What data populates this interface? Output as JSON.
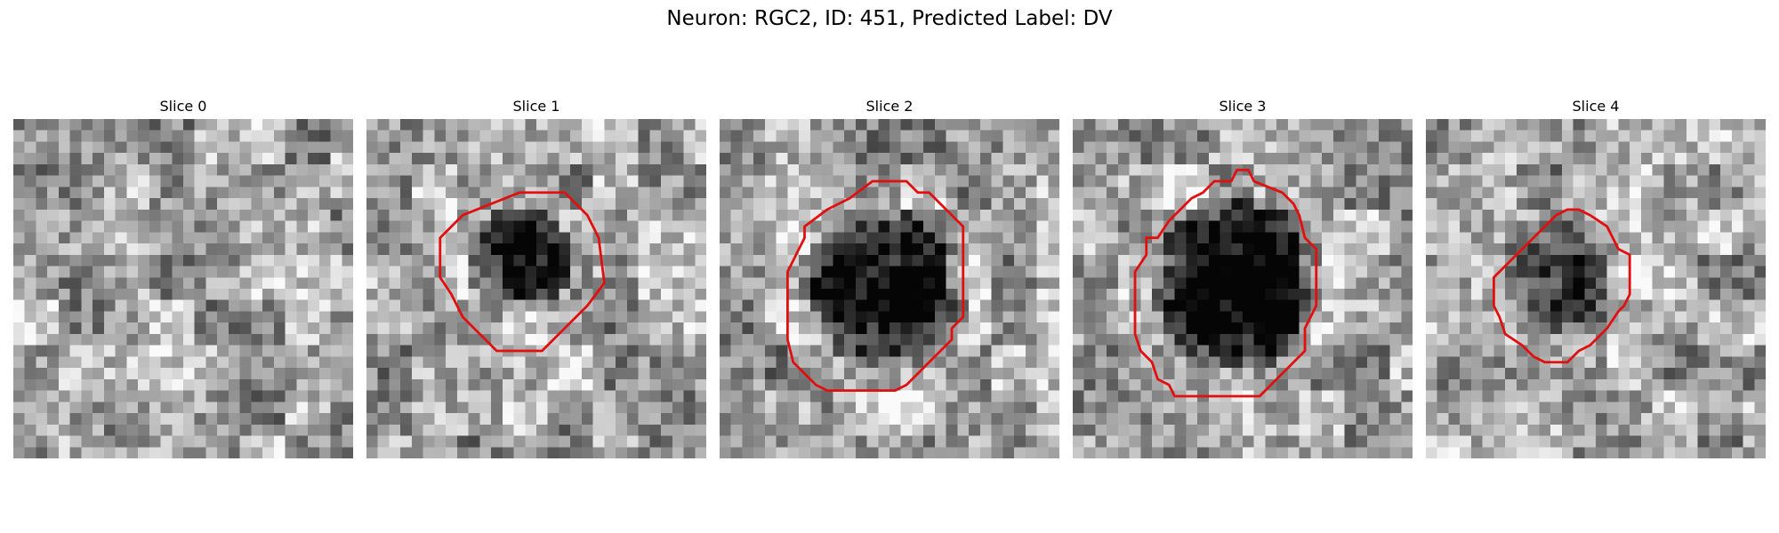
{
  "figure": {
    "title": "Neuron: RGC2, ID: 451, Predicted Label: DV",
    "contour_color": "#e01010",
    "colormap": "gray",
    "slices": [
      {
        "label": "Slice 0",
        "seed": 11,
        "dark_blob": null,
        "contour": []
      },
      {
        "label": "Slice 1",
        "seed": 23,
        "dark_blob": {
          "cx": 13.5,
          "cy": 12.5,
          "r": 5.0,
          "strength": 0.55
        },
        "contour": [
          [
            13.5,
            6.5
          ],
          [
            17.5,
            6.5
          ],
          [
            19.5,
            8.5
          ],
          [
            20.5,
            10.5
          ],
          [
            21.0,
            14.5
          ],
          [
            19.5,
            16.5
          ],
          [
            17.5,
            18.5
          ],
          [
            16.5,
            19.5
          ],
          [
            15.5,
            20.5
          ],
          [
            11.5,
            20.5
          ],
          [
            8.5,
            17.5
          ],
          [
            7.5,
            15.5
          ],
          [
            6.5,
            14.0
          ],
          [
            6.5,
            10.5
          ],
          [
            8.5,
            8.5
          ]
        ]
      },
      {
        "label": "Slice 2",
        "seed": 37,
        "dark_blob": {
          "cx": 14.5,
          "cy": 15.0,
          "r": 7.5,
          "strength": 0.7
        },
        "contour": [
          [
            13.5,
            5.5
          ],
          [
            16.5,
            5.5
          ],
          [
            17.5,
            6.5
          ],
          [
            18.5,
            6.5
          ],
          [
            21.5,
            9.5
          ],
          [
            21.5,
            13.5
          ],
          [
            21.5,
            17.5
          ],
          [
            20.5,
            18.5
          ],
          [
            20.5,
            19.5
          ],
          [
            18.5,
            21.5
          ],
          [
            17.5,
            22.5
          ],
          [
            16.5,
            23.5
          ],
          [
            15.5,
            24.0
          ],
          [
            12.5,
            24.0
          ],
          [
            9.5,
            24.0
          ],
          [
            8.5,
            23.5
          ],
          [
            6.5,
            21.5
          ],
          [
            6.0,
            19.5
          ],
          [
            6.0,
            14.5
          ],
          [
            6.0,
            13.5
          ],
          [
            7.0,
            11.5
          ],
          [
            7.5,
            10.5
          ],
          [
            7.5,
            9.5
          ],
          [
            9.5,
            8.0
          ],
          [
            11.5,
            7.0
          ]
        ]
      },
      {
        "label": "Slice 3",
        "seed": 53,
        "dark_blob": {
          "cx": 14.5,
          "cy": 14.5,
          "r": 8.0,
          "strength": 0.72
        },
        "contour": [
          [
            12.5,
            5.5
          ],
          [
            14.0,
            5.5
          ],
          [
            14.5,
            4.5
          ],
          [
            15.5,
            4.5
          ],
          [
            16.0,
            5.5
          ],
          [
            18.5,
            6.5
          ],
          [
            19.5,
            7.5
          ],
          [
            20.0,
            8.5
          ],
          [
            20.5,
            10.5
          ],
          [
            21.5,
            11.5
          ],
          [
            21.5,
            13.5
          ],
          [
            21.5,
            16.5
          ],
          [
            20.5,
            18.5
          ],
          [
            20.5,
            20.5
          ],
          [
            17.5,
            23.5
          ],
          [
            16.5,
            24.5
          ],
          [
            9.0,
            24.5
          ],
          [
            8.5,
            23.5
          ],
          [
            7.5,
            23.0
          ],
          [
            7.0,
            21.5
          ],
          [
            6.0,
            20.5
          ],
          [
            5.5,
            19.0
          ],
          [
            5.5,
            15.5
          ],
          [
            5.5,
            13.5
          ],
          [
            6.5,
            12.0
          ],
          [
            6.5,
            10.5
          ],
          [
            7.5,
            10.5
          ],
          [
            8.5,
            9.0
          ],
          [
            10.5,
            7.0
          ],
          [
            11.5,
            6.5
          ]
        ]
      },
      {
        "label": "Slice 4",
        "seed": 71,
        "dark_blob": {
          "cx": 12.0,
          "cy": 13.5,
          "r": 5.5,
          "strength": 0.4
        },
        "contour": [
          [
            11.5,
            8.5
          ],
          [
            12.5,
            8.0
          ],
          [
            13.5,
            8.0
          ],
          [
            14.5,
            8.5
          ],
          [
            16.0,
            9.5
          ],
          [
            17.0,
            11.5
          ],
          [
            18.0,
            12.0
          ],
          [
            18.0,
            15.5
          ],
          [
            17.5,
            16.5
          ],
          [
            17.0,
            17.0
          ],
          [
            16.0,
            18.5
          ],
          [
            14.5,
            20.0
          ],
          [
            13.5,
            20.5
          ],
          [
            12.5,
            21.5
          ],
          [
            10.5,
            21.5
          ],
          [
            9.5,
            21.0
          ],
          [
            8.5,
            20.0
          ],
          [
            7.0,
            19.0
          ],
          [
            6.5,
            17.5
          ],
          [
            6.0,
            16.5
          ],
          [
            6.0,
            14.0
          ],
          [
            8.0,
            12.0
          ],
          [
            9.5,
            10.5
          ],
          [
            10.5,
            9.5
          ]
        ]
      }
    ]
  }
}
